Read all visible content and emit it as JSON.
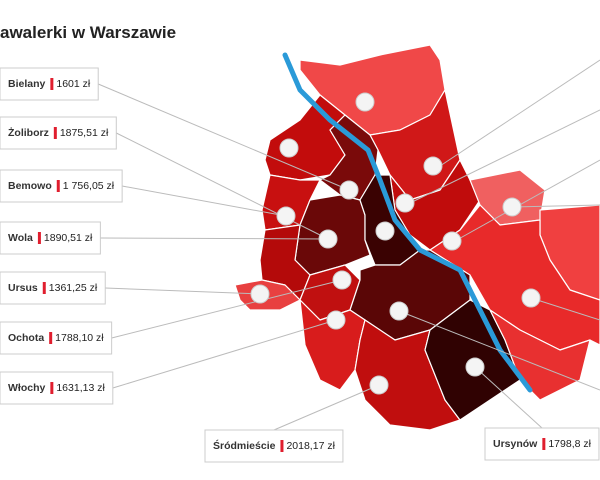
{
  "title": "awalerki w Warszawie",
  "districts": [
    {
      "name": "Bielany",
      "price": "1601 zł"
    },
    {
      "name": "Żoliborz",
      "price": "1875,51 zł"
    },
    {
      "name": "Bemowo",
      "price": "1 756,05 zł"
    },
    {
      "name": "Wola",
      "price": "1890,51 zł"
    },
    {
      "name": "Ursus",
      "price": "1361,25 zł"
    },
    {
      "name": "Ochota",
      "price": "1788,10 zł"
    },
    {
      "name": "Włochy",
      "price": "1631,13 zł"
    },
    {
      "name": "Śródmieście",
      "price": "2018,17 zł"
    },
    {
      "name": "Ursynów",
      "price": "1798,8 zł"
    }
  ]
}
